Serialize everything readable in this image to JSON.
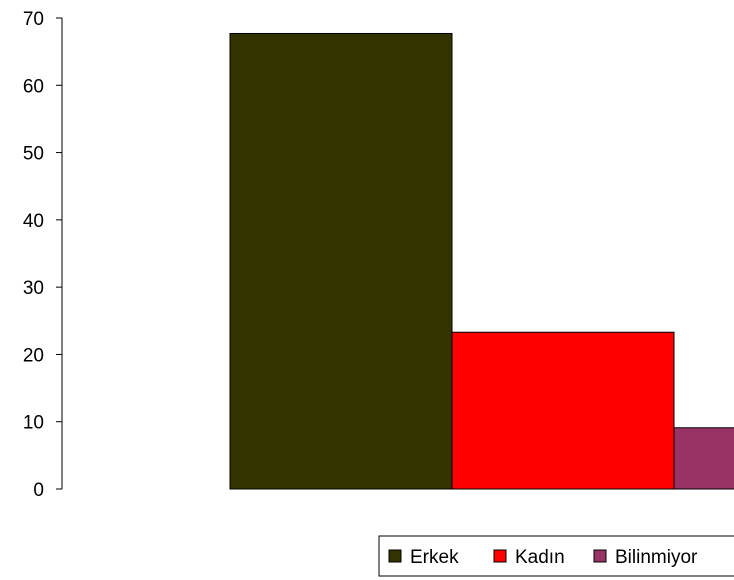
{
  "chart_data": {
    "type": "bar",
    "title": "",
    "xlabel": "",
    "ylabel": "",
    "categories": [
      ""
    ],
    "series": [
      {
        "name": "Erkek",
        "values": [
          67.7
        ],
        "color": "#333300"
      },
      {
        "name": "Kadın",
        "values": [
          23.3
        ],
        "color": "#ff0000"
      },
      {
        "name": "Bilinmiyor",
        "values": [
          9.1
        ],
        "color": "#993366"
      }
    ],
    "ylim": [
      0,
      70
    ],
    "yticks": [
      0,
      10,
      20,
      30,
      40,
      50,
      60,
      70
    ],
    "grid": false,
    "legend_position": "bottom"
  }
}
